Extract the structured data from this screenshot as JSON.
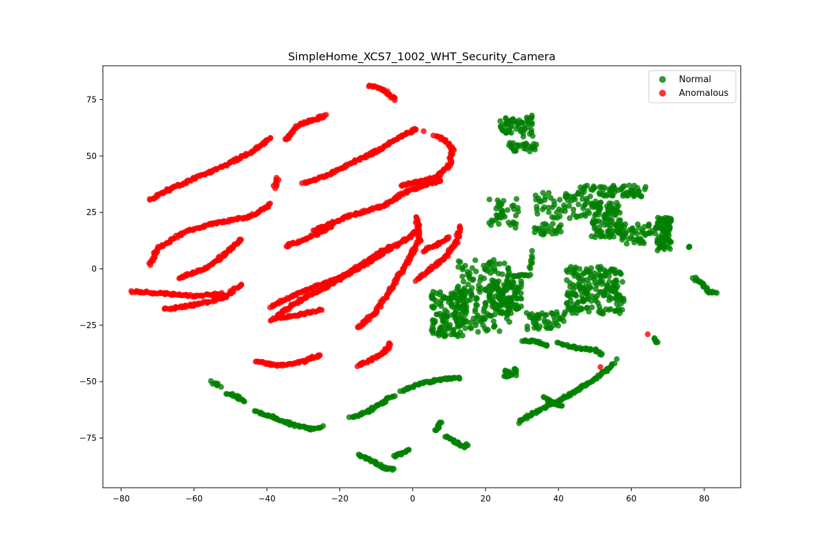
{
  "chart_data": {
    "type": "scatter",
    "title": "SimpleHome_XCS7_1002_WHT_Security_Camera",
    "xlabel": "",
    "ylabel": "",
    "xlim": [
      -85,
      90
    ],
    "ylim": [
      -97,
      90
    ],
    "x_ticks": [
      -80,
      -60,
      -40,
      -20,
      0,
      20,
      40,
      60,
      80
    ],
    "y_ticks": [
      -75,
      -50,
      -25,
      0,
      25,
      50,
      75
    ],
    "grid": false,
    "legend_position": "top-right",
    "series": [
      {
        "name": "Normal",
        "color": "#008000",
        "segments": [
          [
            [
              -55,
              -50
            ],
            [
              -53,
              -52
            ]
          ],
          [
            [
              -51,
              -55
            ],
            [
              -48,
              -57
            ],
            [
              -46,
              -59
            ]
          ],
          [
            [
              -43,
              -63
            ],
            [
              -38,
              -66
            ],
            [
              -33,
              -69
            ],
            [
              -28,
              -71
            ],
            [
              -25,
              -70
            ]
          ],
          [
            [
              -17,
              -66
            ],
            [
              -12,
              -63
            ],
            [
              -8,
              -59
            ],
            [
              -5,
              -56
            ]
          ],
          [
            [
              -3,
              -54
            ],
            [
              2,
              -51
            ],
            [
              6,
              -49.5
            ],
            [
              10,
              -48.5
            ],
            [
              13,
              -48.5
            ]
          ],
          [
            [
              -1,
              -80
            ],
            [
              -3,
              -82
            ],
            [
              -5,
              -83
            ]
          ],
          [
            [
              -15,
              -82
            ],
            [
              -13,
              -84
            ],
            [
              -10,
              -86
            ],
            [
              -8,
              -88
            ],
            [
              -5,
              -89
            ]
          ],
          [
            [
              6,
              -72
            ],
            [
              7,
              -70
            ],
            [
              8,
              -68
            ]
          ],
          [
            [
              9,
              -74
            ],
            [
              12,
              -77
            ],
            [
              14,
              -79
            ],
            [
              15,
              -78
            ]
          ],
          [
            [
              27,
              -3
            ],
            [
              32,
              -3
            ]
          ],
          [
            [
              25,
              -45
            ],
            [
              27,
              -47
            ],
            [
              25,
              -48
            ]
          ],
          [
            [
              28,
              -44
            ],
            [
              28,
              -47
            ]
          ],
          [
            [
              30,
              -32
            ],
            [
              34,
              -32
            ],
            [
              37,
              -34
            ]
          ],
          [
            [
              40,
              -33
            ],
            [
              45,
              -35
            ],
            [
              50,
              -36
            ],
            [
              52,
              -38
            ]
          ],
          [
            [
              36,
              -57
            ],
            [
              38,
              -59
            ],
            [
              41,
              -61
            ]
          ],
          [
            [
              29,
              -68
            ],
            [
              33,
              -64
            ],
            [
              38,
              -60
            ],
            [
              43,
              -56
            ],
            [
              48,
              -51
            ],
            [
              53,
              -45
            ],
            [
              55,
              -42
            ]
          ],
          [
            [
              66,
              -31
            ],
            [
              67,
              -33
            ]
          ],
          [
            [
              56,
              -40
            ]
          ],
          [
            [
              76,
              10
            ],
            [
              75.5,
              10
            ]
          ],
          [
            [
              77,
              -4
            ],
            [
              79,
              -6
            ],
            [
              81,
              -10
            ],
            [
              83,
              -11
            ]
          ]
        ],
        "clusters": [
          {
            "x": [
              5,
              15
            ],
            "y": [
              -30,
              -10
            ],
            "n": 140
          },
          {
            "x": [
              12,
              27
            ],
            "y": [
              -28,
              4
            ],
            "n": 170
          },
          {
            "x": [
              21,
              30
            ],
            "y": [
              -20,
              -5
            ],
            "n": 90
          },
          {
            "x": [
              31,
              42
            ],
            "y": [
              -27,
              -19
            ],
            "n": 50
          },
          {
            "x": [
              32,
              33
            ],
            "y": [
              0,
              8
            ],
            "n": 8
          },
          {
            "x": [
              42,
              58
            ],
            "y": [
              -20,
              1
            ],
            "n": 190
          },
          {
            "x": [
              21,
              29
            ],
            "y": [
              17,
              31
            ],
            "n": 40
          },
          {
            "x": [
              33,
              41
            ],
            "y": [
              15,
              20
            ],
            "n": 25
          },
          {
            "x": [
              33,
              49
            ],
            "y": [
              22,
              34
            ],
            "n": 60
          },
          {
            "x": [
              44,
              64
            ],
            "y": [
              32,
              37
            ],
            "n": 70
          },
          {
            "x": [
              49,
              57
            ],
            "y": [
              14,
              30
            ],
            "n": 100
          },
          {
            "x": [
              57,
              67
            ],
            "y": [
              10,
              20
            ],
            "n": 50
          },
          {
            "x": [
              67,
              71
            ],
            "y": [
              8,
              23
            ],
            "n": 80
          },
          {
            "x": [
              24,
              30
            ],
            "y": [
              60,
              67
            ],
            "n": 40
          },
          {
            "x": [
              30,
              33
            ],
            "y": [
              58,
              68
            ],
            "n": 20
          },
          {
            "x": [
              26,
              34
            ],
            "y": [
              52,
              56
            ],
            "n": 30
          }
        ]
      },
      {
        "name": "Anomalous",
        "color": "#ff0000",
        "segments": [
          [
            [
              -72,
              31
            ],
            [
              -67,
              35
            ],
            [
              -60,
              40
            ],
            [
              -50,
              47
            ],
            [
              -43,
              53
            ],
            [
              -39,
              58
            ]
          ],
          [
            [
              -38,
              36
            ],
            [
              -37,
              40
            ]
          ],
          [
            [
              -35,
              57
            ],
            [
              -33,
              61
            ],
            [
              -31,
              64
            ],
            [
              -27,
              66
            ],
            [
              -24,
              68
            ]
          ],
          [
            [
              -12,
              81
            ],
            [
              -9,
              80
            ],
            [
              -6,
              77
            ],
            [
              -5,
              75
            ]
          ],
          [
            [
              -30,
              38
            ],
            [
              -24,
              41
            ],
            [
              -18,
              46
            ],
            [
              -10,
              52
            ],
            [
              -3,
              59
            ],
            [
              1,
              62
            ]
          ],
          [
            [
              3,
              61
            ]
          ],
          [
            [
              6,
              59
            ],
            [
              9,
              57
            ],
            [
              11,
              53
            ],
            [
              10,
              46
            ],
            [
              7,
              41
            ],
            [
              3,
              39
            ],
            [
              -3,
              37
            ]
          ],
          [
            [
              -27,
              17
            ],
            [
              -18,
              23
            ],
            [
              -8,
              28
            ],
            [
              -2,
              34
            ],
            [
              3,
              37
            ],
            [
              8,
              39
            ]
          ],
          [
            [
              -35,
              10
            ],
            [
              -28,
              14
            ],
            [
              -22,
              19
            ]
          ],
          [
            [
              -72,
              2
            ],
            [
              -70,
              9
            ],
            [
              -63,
              16
            ],
            [
              -55,
              20
            ],
            [
              -45,
              23
            ],
            [
              -40,
              27
            ],
            [
              -39,
              29
            ]
          ],
          [
            [
              -64,
              -4
            ],
            [
              -57,
              0
            ],
            [
              -51,
              7
            ],
            [
              -47,
              13
            ]
          ],
          [
            [
              -77,
              -10
            ],
            [
              -68,
              -11
            ],
            [
              -60,
              -12
            ],
            [
              -52,
              -11
            ]
          ],
          [
            [
              -68,
              -18
            ],
            [
              -60,
              -16
            ],
            [
              -52,
              -13
            ],
            [
              -47,
              -7
            ]
          ],
          [
            [
              -39,
              -17
            ],
            [
              -33,
              -12
            ],
            [
              -27,
              -8
            ],
            [
              -20,
              -4
            ],
            [
              -13,
              3
            ],
            [
              -6,
              10
            ]
          ],
          [
            [
              -39,
              -23
            ],
            [
              -33,
              -16
            ],
            [
              -25,
              -9
            ],
            [
              -15,
              0
            ],
            [
              -7,
              8
            ],
            [
              0,
              15
            ],
            [
              2,
              20
            ]
          ],
          [
            [
              -15,
              -26
            ],
            [
              -10,
              -19
            ],
            [
              -6,
              -9
            ],
            [
              0,
              7
            ],
            [
              2,
              13
            ],
            [
              1,
              23
            ]
          ],
          [
            [
              -37,
              -22
            ],
            [
              -30,
              -20
            ],
            [
              -25,
              -18
            ]
          ],
          [
            [
              1,
              -5
            ],
            [
              5,
              0
            ],
            [
              9,
              5
            ],
            [
              12,
              12
            ],
            [
              13,
              19
            ]
          ],
          [
            [
              3,
              8
            ],
            [
              7,
              11
            ],
            [
              10,
              14
            ]
          ],
          [
            [
              -43,
              -41
            ],
            [
              -37,
              -43
            ],
            [
              -30,
              -41
            ],
            [
              -25,
              -38
            ]
          ],
          [
            [
              -15,
              -43
            ],
            [
              -11,
              -40
            ],
            [
              -8,
              -37
            ],
            [
              -6,
              -33
            ]
          ],
          [
            [
              64.5,
              -29
            ]
          ],
          [
            [
              51.5,
              -43.5
            ]
          ]
        ],
        "clusters": []
      }
    ]
  }
}
